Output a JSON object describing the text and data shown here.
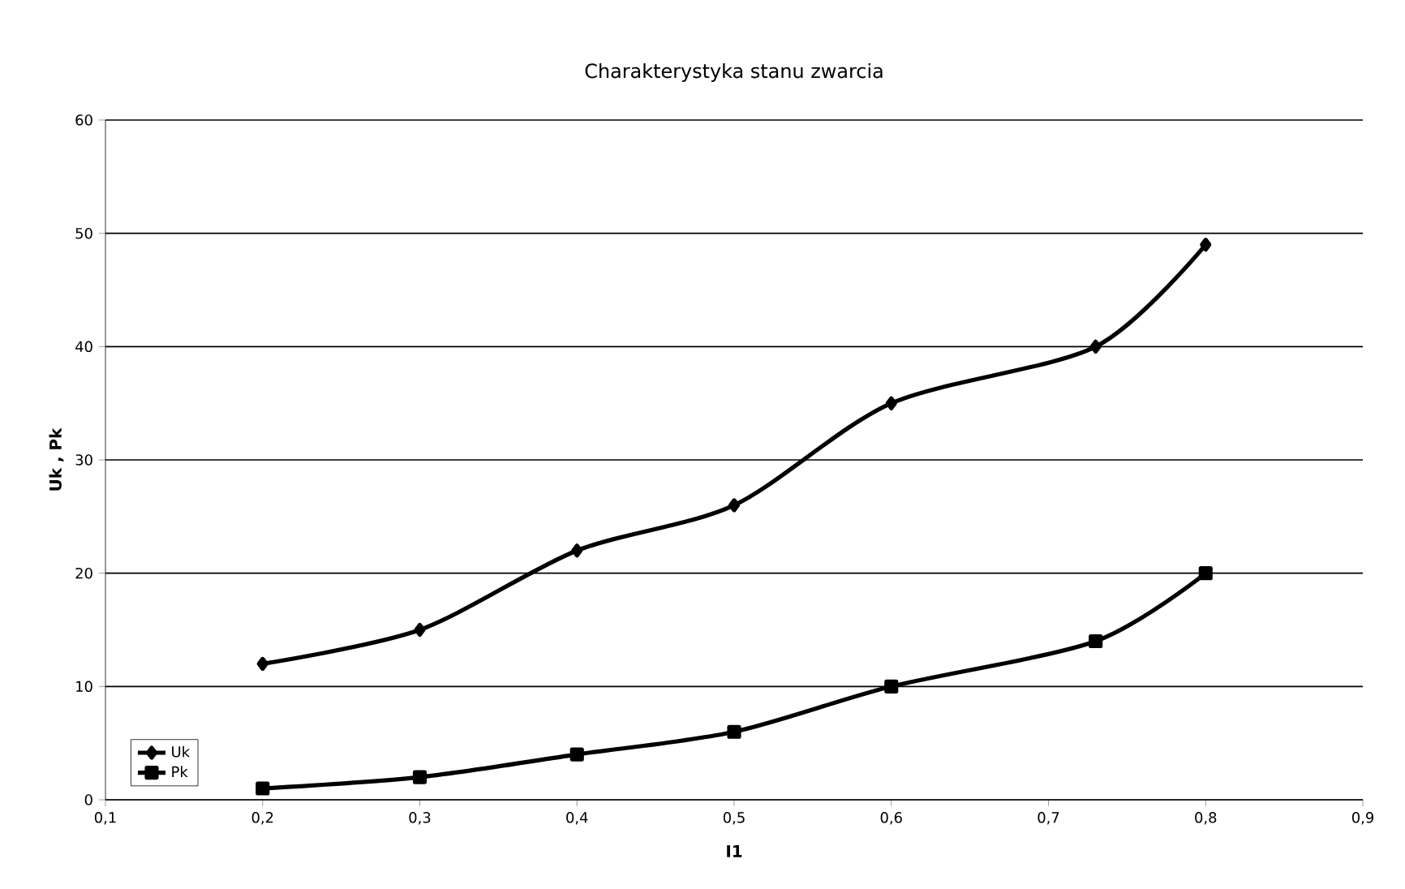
{
  "chart_data": {
    "type": "line",
    "title": "Charakterystyka stanu zwarcia",
    "xlabel": "I1",
    "ylabel": "Uk , Pk",
    "x": [
      0.2,
      0.3,
      0.4,
      0.5,
      0.6,
      0.73,
      0.8
    ],
    "series": [
      {
        "name": "Uk",
        "color": "#000000",
        "marker": "diamond",
        "values": [
          12,
          15,
          22,
          26,
          35,
          40,
          49
        ]
      },
      {
        "name": "Pk",
        "color": "#000000",
        "marker": "square",
        "values": [
          1,
          2,
          4,
          6,
          10,
          14,
          20
        ]
      }
    ],
    "xlim": [
      0.1,
      0.9
    ],
    "xticks": [
      {
        "value": 0.1,
        "label": "0,1"
      },
      {
        "value": 0.2,
        "label": "0,2"
      },
      {
        "value": 0.3,
        "label": "0,3"
      },
      {
        "value": 0.4,
        "label": "0,4"
      },
      {
        "value": 0.5,
        "label": "0,5"
      },
      {
        "value": 0.6,
        "label": "0,6"
      },
      {
        "value": 0.7,
        "label": "0,7"
      },
      {
        "value": 0.8,
        "label": "0,8"
      },
      {
        "value": 0.9,
        "label": "0,9"
      }
    ],
    "ylim": [
      0,
      60
    ],
    "yticks": [
      0,
      10,
      20,
      30,
      40,
      50,
      60
    ],
    "grid": "y",
    "legend": "bottom left",
    "line_style": "solid"
  }
}
